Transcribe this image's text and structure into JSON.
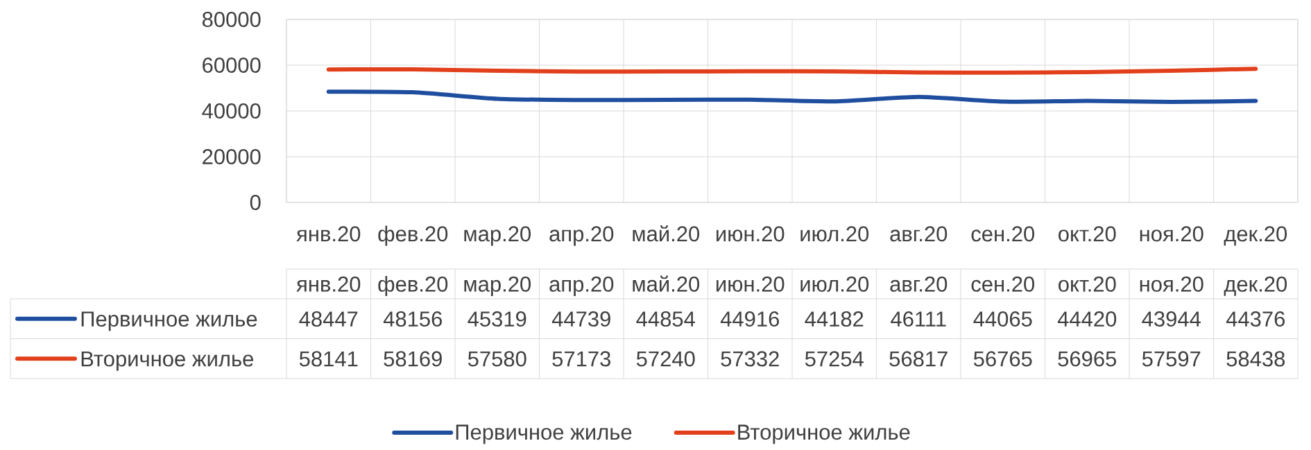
{
  "chart_data": {
    "type": "line",
    "categories": [
      "янв.20",
      "фев.20",
      "мар.20",
      "апр.20",
      "май.20",
      "июн.20",
      "июл.20",
      "авг.20",
      "сен.20",
      "окт.20",
      "ноя.20",
      "дек.20"
    ],
    "series": [
      {
        "name": "Первичное жилье",
        "color": "#1f4e9f",
        "values": [
          48447,
          48156,
          45319,
          44739,
          44854,
          44916,
          44182,
          46111,
          44065,
          44420,
          43944,
          44376
        ]
      },
      {
        "name": "Вторичное жилье",
        "color": "#e2401c",
        "values": [
          58141,
          58169,
          57580,
          57173,
          57240,
          57332,
          57254,
          56817,
          56765,
          56965,
          57597,
          58438
        ]
      }
    ],
    "ylim": [
      0,
      80000
    ],
    "yticks": [
      0,
      20000,
      40000,
      60000,
      80000
    ],
    "grid": true,
    "legend": "bottom",
    "data_labels": true,
    "line_style": "solid"
  }
}
